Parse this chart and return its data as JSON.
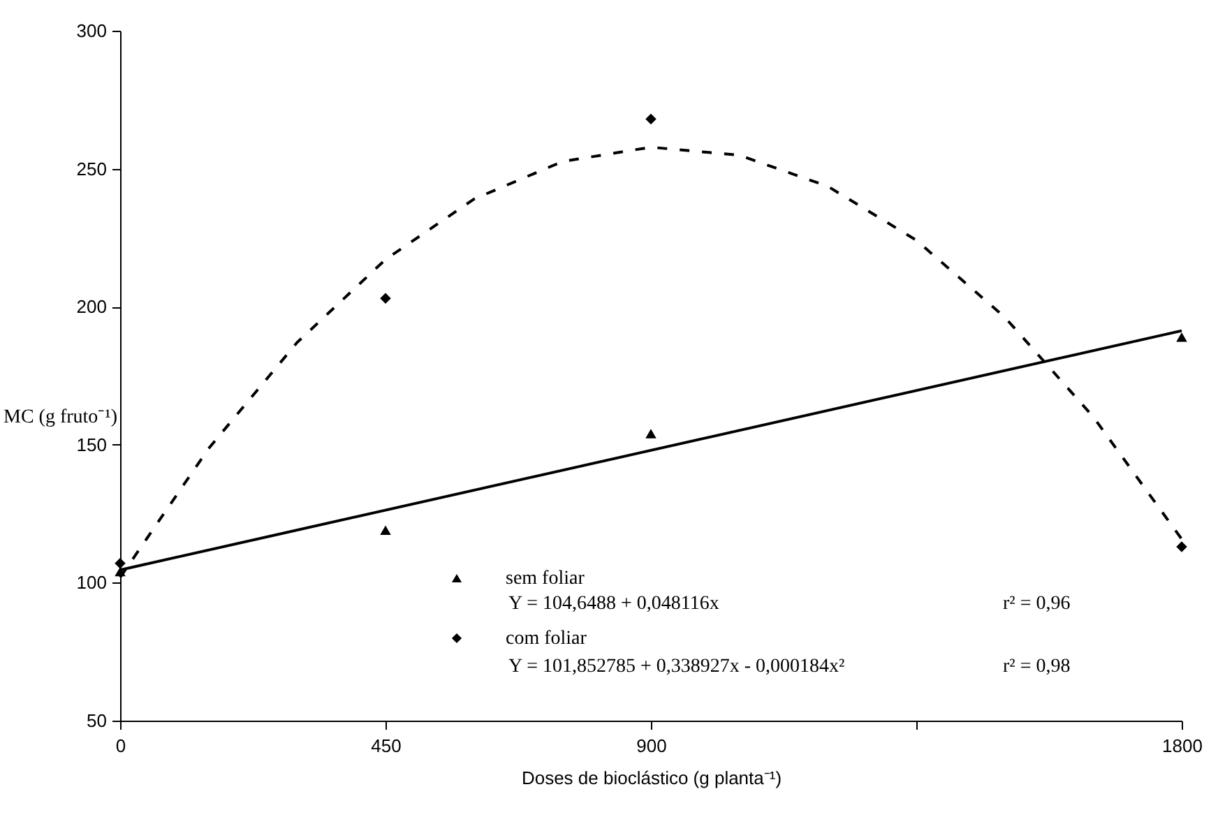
{
  "chart_data": {
    "type": "scatter",
    "xlabel": "Doses de bioclástico (g planta⁻¹)",
    "ylabel": "MC (g fruto⁻¹)",
    "xlim": [
      0,
      1800
    ],
    "xticks": [
      0,
      450,
      900,
      {
        "value": 1350,
        "label": null
      },
      1800
    ],
    "ylim": [
      50,
      300
    ],
    "yticks": [
      50,
      100,
      150,
      200,
      250,
      300
    ],
    "grid": false,
    "legend": "bottom",
    "series": [
      {
        "name": "sem foliar",
        "marker": "triangle",
        "color": "#000000",
        "x": [
          0,
          450,
          900,
          1800
        ],
        "values": [
          104,
          119,
          154,
          189
        ]
      },
      {
        "name": "com foliar",
        "marker": "diamond",
        "color": "#000000",
        "x": [
          0,
          450,
          900,
          1800
        ],
        "values": [
          107,
          203,
          268,
          113
        ]
      },
      {
        "type": "line",
        "line_style": "solid",
        "marker": "none",
        "color": "#000000",
        "x": [
          0,
          1800
        ],
        "values": [
          104.6,
          191.3
        ]
      },
      {
        "type": "line",
        "line_style": "dashed",
        "marker": "none",
        "color": "#000000",
        "x": [
          0,
          150,
          300,
          450,
          600,
          750,
          900,
          1050,
          1200,
          1350,
          1500,
          1650,
          1800
        ],
        "values": [
          101.9,
          148.6,
          187.0,
          217.1,
          239.0,
          252.6,
          257.8,
          254.9,
          243.6,
          224.1,
          196.2,
          160.1,
          115.8
        ]
      }
    ],
    "annotations": [
      "Y = 104,6488 + 0,048116x",
      "r² = 0,96",
      "Y = 101,852785 + 0,338927x - 0,000184x²",
      "r² = 0,98"
    ]
  }
}
